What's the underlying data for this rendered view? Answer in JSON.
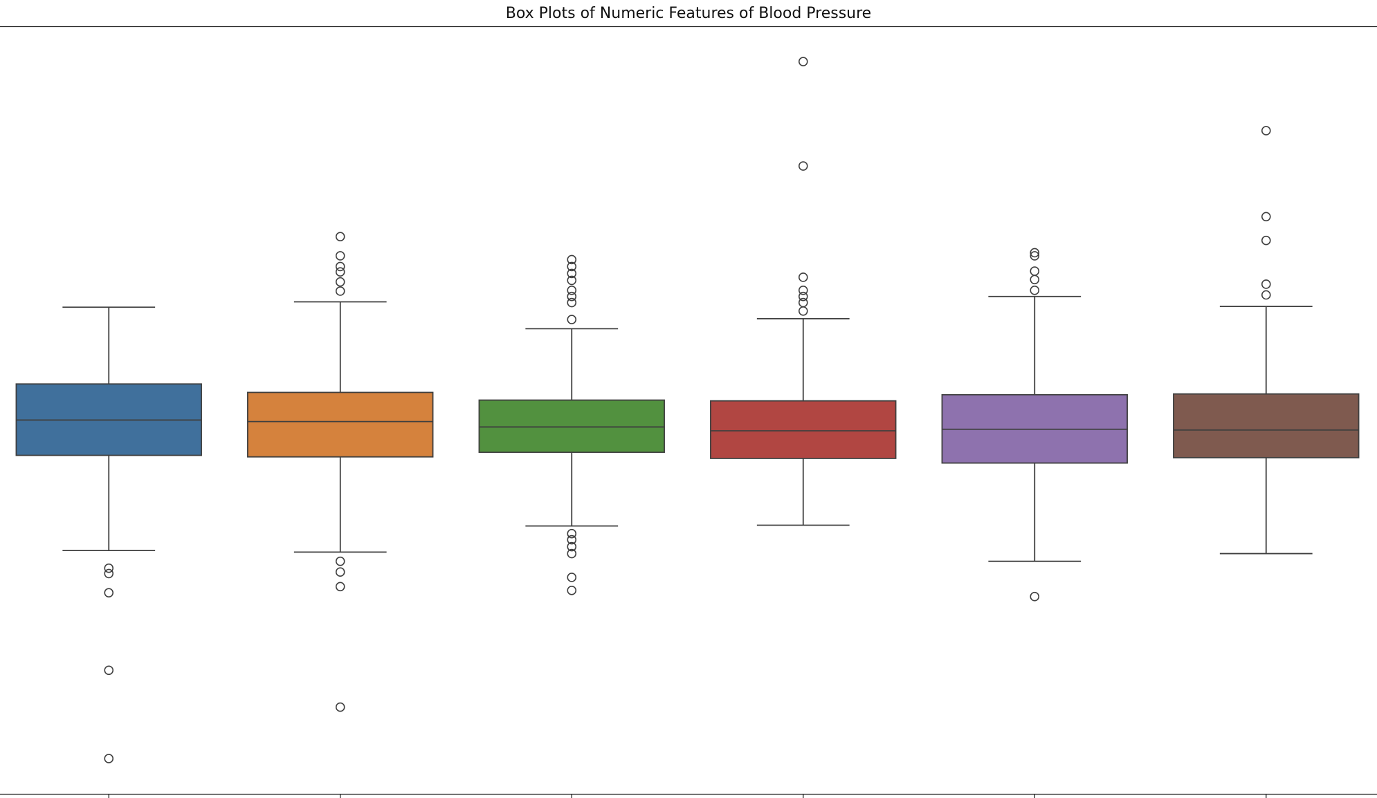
{
  "chart_data": {
    "type": "box",
    "title": "Box Plots of Numeric Features of Blood Pressure",
    "categories": [
      null,
      null,
      null,
      null,
      null,
      null
    ],
    "ylim": [
      0,
      100
    ],
    "boxes": [
      {
        "color": "#40709c",
        "whislo": 31.7,
        "q1": 44.1,
        "med": 48.7,
        "q3": 53.4,
        "whishi": 63.4,
        "fliers": [
          29.4,
          28.7,
          26.2,
          16.1,
          4.6
        ]
      },
      {
        "color": "#d5823d",
        "whislo": 31.5,
        "q1": 43.9,
        "med": 48.5,
        "q3": 52.3,
        "whishi": 64.1,
        "fliers": [
          72.6,
          70.1,
          68.7,
          68.0,
          66.7,
          65.5,
          30.3,
          28.9,
          27.0,
          11.3
        ]
      },
      {
        "color": "#52913f",
        "whislo": 34.9,
        "q1": 44.5,
        "med": 47.8,
        "q3": 51.3,
        "whishi": 60.6,
        "fliers": [
          69.6,
          68.7,
          67.8,
          66.9,
          65.6,
          64.8,
          64.0,
          61.8,
          33.9,
          33.1,
          32.2,
          31.3,
          28.2,
          26.5
        ]
      },
      {
        "color": "#b14642",
        "whislo": 35.0,
        "q1": 43.7,
        "med": 47.3,
        "q3": 51.2,
        "whishi": 61.9,
        "fliers": [
          95.4,
          81.8,
          67.3,
          65.6,
          64.8,
          64.0,
          62.9
        ]
      },
      {
        "color": "#8e72ae",
        "whislo": 30.3,
        "q1": 43.1,
        "med": 47.5,
        "q3": 52.0,
        "whishi": 64.8,
        "fliers": [
          70.5,
          70.1,
          68.1,
          67.0,
          65.6,
          25.7
        ]
      },
      {
        "color": "#7f5a4f",
        "whislo": 31.3,
        "q1": 43.8,
        "med": 47.4,
        "q3": 52.1,
        "whishi": 63.5,
        "fliers": [
          86.4,
          75.2,
          72.1,
          66.4,
          65.0
        ]
      }
    ]
  }
}
